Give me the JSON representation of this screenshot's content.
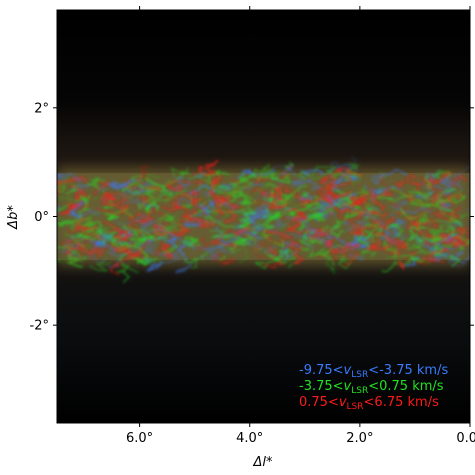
{
  "chart_data": {
    "type": "heatmap",
    "title": "",
    "xlabel": "Δl*",
    "ylabel": "Δb*",
    "xlim": [
      7.5,
      0.0
    ],
    "ylim": [
      -3.8,
      3.8
    ],
    "x_ticks": [
      {
        "value": 6.0,
        "label": "6.0°"
      },
      {
        "value": 4.0,
        "label": "4.0°"
      },
      {
        "value": 2.0,
        "label": "2.0°"
      },
      {
        "value": 0.0,
        "label": "0.0°"
      }
    ],
    "y_ticks": [
      {
        "value": 2.0,
        "label": "2°"
      },
      {
        "value": 0.0,
        "label": "0°"
      },
      {
        "value": -2.0,
        "label": "-2°"
      }
    ],
    "background_color": "#000000",
    "emission_band_halfwidth": 0.8,
    "legend_position": "bottom-right",
    "series": [
      {
        "name": "-9.75<vLSR<-3.75 km/s",
        "label_prefix": "-9.75<",
        "label_suffix": "<-3.75 km/s",
        "color": "#3a7bff"
      },
      {
        "name": "-3.75<vLSR<0.75 km/s",
        "label_prefix": "-3.75<",
        "label_suffix": "<0.75 km/s",
        "color": "#22e022"
      },
      {
        "name": "0.75<vLSR<6.75 km/s",
        "label_prefix": "0.75<",
        "label_suffix": "<6.75 km/s",
        "color": "#ff1a1a"
      }
    ],
    "v_symbol": "v",
    "v_subscript": "LSR"
  }
}
